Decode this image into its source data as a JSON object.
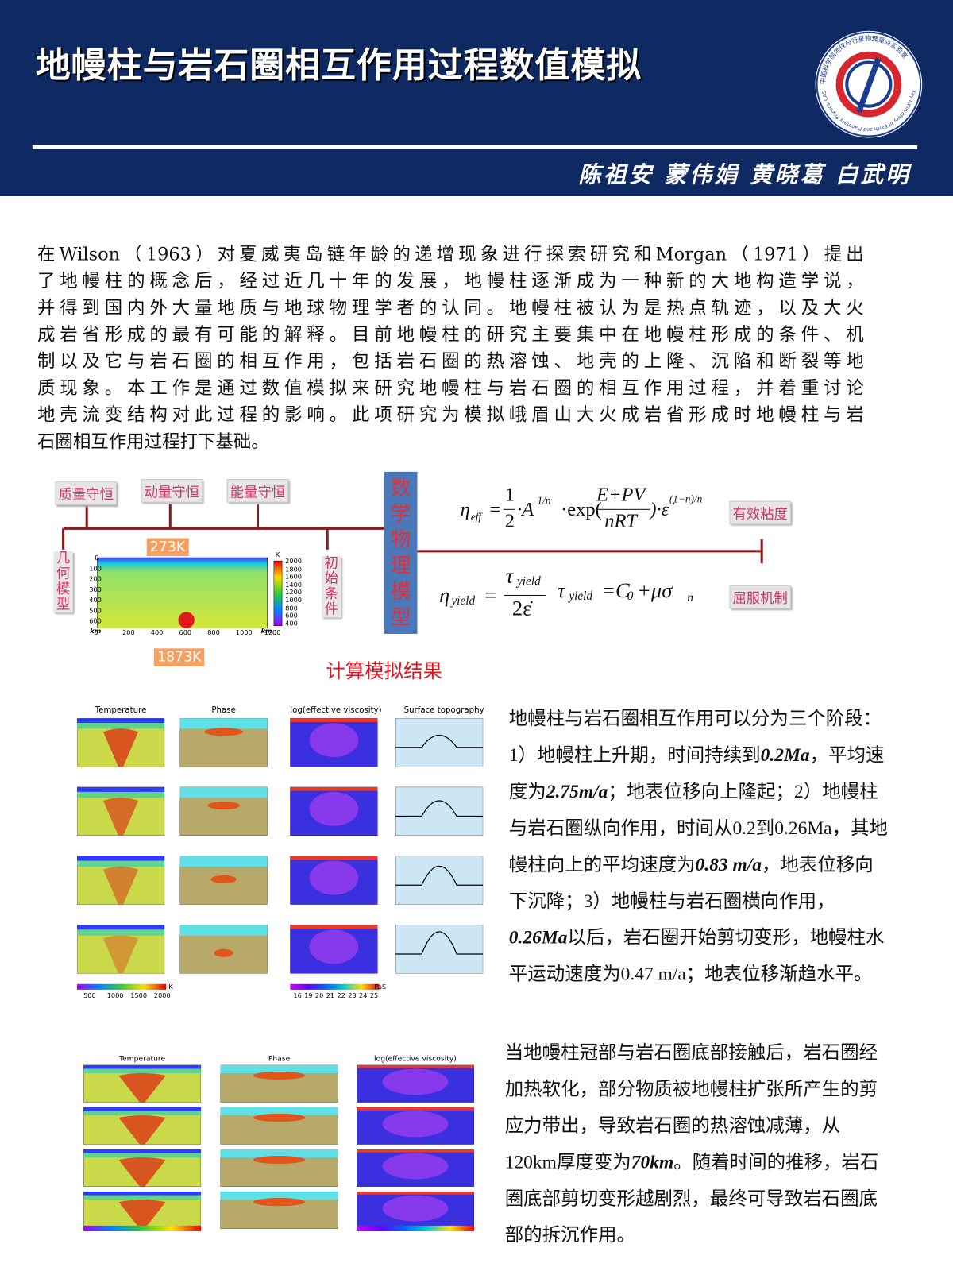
{
  "header": {
    "title": "地幔柱与岩石圈相互作用过程数值模拟",
    "authors": "陈祖安 蒙伟娟 黄晓葛 白武明",
    "logo_text": "中国科学院地球与行星物理重点实验室",
    "logo_text_en": "Key Laboratory of Earth and Planetary Physics, CAS"
  },
  "intro": {
    "lines": [
      "在Wilson（1963）对夏威夷岛链年龄的递增现象进行探索研究和Morgan（1971）提出",
      "了地幔柱的概念后，经过近几十年的发展，地幔柱逐渐成为一种新的大地构造学说，",
      "并得到国内外大量地质与地球物理学者的认同。地幔柱被认为是热点轨迹，以及大火",
      "成岩省形成的最有可能的解释。目前地幔柱的研究主要集中在地幔柱形成的条件、机",
      "制以及它与岩石圈的相互作用，包括岩石圈的热溶蚀、地壳的上隆、沉陷和断裂等地",
      "质现象。本工作是通过数值模拟来研究地幔柱与岩石圈的相互作用过程，并着重讨论",
      "地壳流变结构对此过程的影响。此项研究为模拟峨眉山大火成岩省形成时地幔柱与岩",
      "石圈相互作用过程打下基础。"
    ]
  },
  "diagram": {
    "conservation": [
      "质量守恒",
      "动量守恒",
      "能量守恒"
    ],
    "geometry": "几何模型",
    "initial": "初始条件",
    "model": "数学物理模型",
    "eff_visc": "有效粘度",
    "yield": "屈服机制",
    "temp_top": "273K",
    "temp_plume": "1873K",
    "x_ticks": [
      "0",
      "200",
      "400",
      "600",
      "800",
      "1000",
      "1200"
    ],
    "y_ticks": [
      "0",
      "100",
      "200",
      "300",
      "400",
      "500",
      "600"
    ],
    "axis_unit": "km",
    "colorbar_unit": "K",
    "colorbar_ticks": [
      "2000",
      "1800",
      "1600",
      "1400",
      "1200",
      "1000",
      "800",
      "600",
      "400"
    ],
    "formula_eff": {
      "eta": "η",
      "eta_sub": "eff",
      "eq": "=",
      "num1": "1",
      "den1": "2",
      "a": "·A",
      "a_sup": "1/n",
      "exp": "·exp(",
      "num2": "E+PV",
      "den2": "nRT",
      "close": ")·ε̇",
      "close_sup": "(1−n)/n"
    },
    "formula_yield": {
      "eta": "η",
      "eta_sub": "yield",
      "eq": "=",
      "num_tau": "τ",
      "num_sub": "yield",
      "den": "2ε̇",
      "tau": "τ",
      "tau_sub": "yield",
      "eq2": "=C",
      "c_sub": "0",
      "rest": "+μσ",
      "rest_sub": "n"
    }
  },
  "results_title": "计算模拟结果",
  "fig1": {
    "panels": [
      "Temperature",
      "Phase",
      "log(effective viscosity)",
      "Surface topography"
    ],
    "cb1_ticks": [
      "500",
      "1000",
      "1500",
      "2000"
    ],
    "cb1_unit": "K",
    "cb2_ticks": [
      "16",
      "19",
      "20",
      "21",
      "22",
      "23",
      "24",
      "25"
    ],
    "cb2_unit": "PaS"
  },
  "text1": {
    "lines": [
      [
        "地幔柱与岩石圈相互作用可以分为三个阶段："
      ],
      [
        "1）地幔柱上升期，时间持续到",
        {
          "bold": "0.2Ma"
        },
        "，平均速"
      ],
      [
        "度为",
        {
          "bold": "2.75m/a"
        },
        "；地表位移向上隆起；2）地幔柱"
      ],
      [
        "与岩石圈纵向作用，时间从0.2到0.26Ma，其地"
      ],
      [
        "幔柱向上的平均速度为",
        {
          "bold": "0.83 m/a"
        },
        "，地表位移向"
      ],
      [
        "下沉降；3）地幔柱与岩石圈横向作用，"
      ],
      [
        {
          "bold": "0.26Ma"
        },
        "以后，岩石圈开始剪切变形，地幔柱水"
      ],
      [
        "平运动速度为0.47 m/a；地表位移渐趋水平。"
      ]
    ]
  },
  "fig2": {
    "panels": [
      "Temperature",
      "Phase",
      "log(effective viscosity)"
    ]
  },
  "text2": {
    "lines": [
      [
        "当地幔柱冠部与岩石圈底部接触后，岩石圈经"
      ],
      [
        "加热软化，部分物质被地幔柱扩张所产生的剪"
      ],
      [
        "应力带出，导致岩石圈的热溶蚀减薄，从"
      ],
      [
        "120km厚度变为",
        {
          "bold": "70km"
        },
        "。随着时间的推移，岩石"
      ],
      [
        "圈底部剪切变形越剧烈，最终可导致岩石圈底"
      ],
      [
        "部的拆沉作用。"
      ]
    ]
  }
}
